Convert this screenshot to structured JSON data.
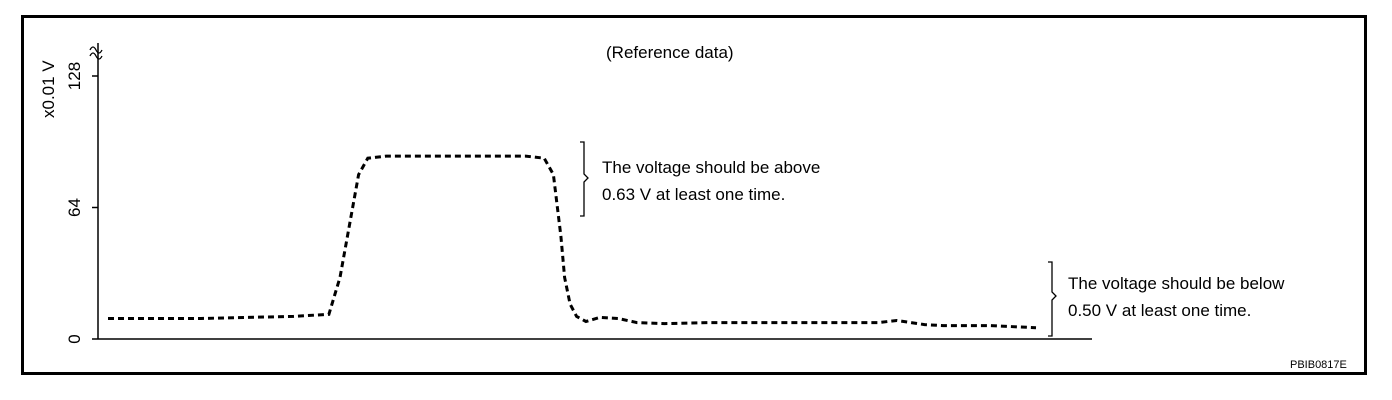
{
  "figure": {
    "reference_label": "(Reference data)",
    "figure_code": "PBIB0817E"
  },
  "chart_data": {
    "type": "line",
    "title": "(Reference data)",
    "ylabel": "x0.01 V",
    "xlabel": "",
    "ylim": [
      0,
      128
    ],
    "yticks": [
      0,
      64,
      128
    ],
    "y_axis_break": true,
    "line_style": "dashed",
    "x": [
      0,
      5,
      10,
      15,
      20,
      23.8,
      25,
      27,
      28,
      30,
      32,
      35,
      40,
      45,
      47,
      48,
      48.8,
      49.2,
      49.8,
      50.5,
      51.5,
      53,
      55,
      57,
      60,
      65,
      70,
      75,
      80,
      83,
      85,
      88,
      90,
      95,
      100
    ],
    "series": [
      {
        "values": [
          10,
          10,
          10,
          10.5,
          11,
          12,
          30,
          80,
          88,
          89,
          89,
          89,
          89,
          89,
          88,
          80,
          50,
          30,
          17,
          11,
          8.5,
          10.5,
          10,
          8,
          7.5,
          8,
          8,
          8,
          8,
          8,
          9,
          7,
          6.5,
          6.5,
          5.5
        ]
      }
    ],
    "annotations": [
      {
        "text_lines": [
          "The voltage should be above",
          "0.63 V at least one time."
        ]
      },
      {
        "text_lines": [
          "The voltage should be below",
          "0.50 V at least one time."
        ]
      }
    ],
    "grid": false,
    "legend": "none"
  }
}
